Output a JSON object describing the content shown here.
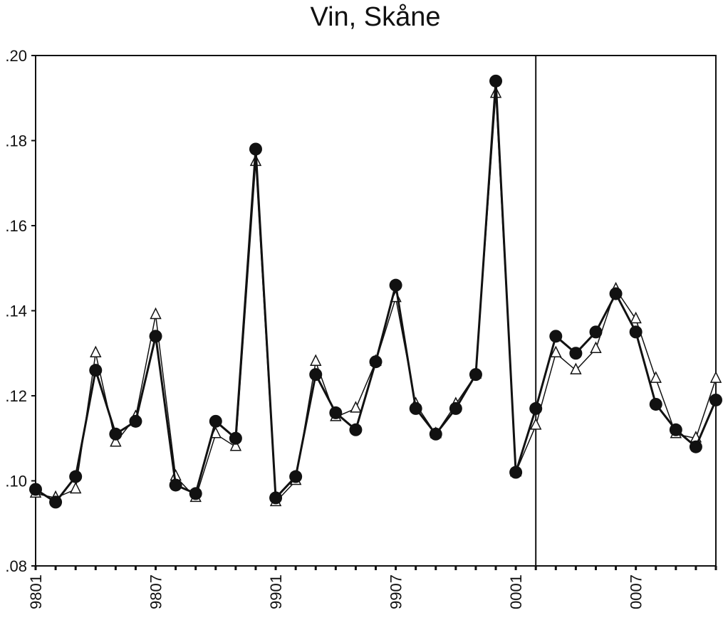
{
  "chart_data": {
    "type": "line",
    "title": "Vin, Skåne",
    "categories": [
      "9801",
      null,
      null,
      null,
      null,
      null,
      "9807",
      null,
      null,
      null,
      null,
      null,
      "9901",
      null,
      null,
      null,
      null,
      null,
      "9907",
      null,
      null,
      null,
      null,
      null,
      "0001",
      null,
      null,
      null,
      null,
      null,
      "0007",
      null,
      null,
      null,
      null
    ],
    "series": [
      {
        "color": "#111111",
        "marker": "circle",
        "values": [
          0.098,
          0.095,
          0.101,
          0.126,
          0.111,
          0.114,
          0.134,
          0.099,
          0.097,
          0.114,
          0.11,
          0.178,
          0.096,
          0.101,
          0.125,
          0.116,
          0.112,
          0.128,
          0.146,
          0.117,
          0.111,
          0.117,
          0.125,
          0.194,
          0.102,
          0.117,
          0.134,
          0.13,
          0.135,
          0.144,
          0.135,
          0.118,
          0.112,
          0.108,
          0.119
        ]
      },
      {
        "color": "#111111",
        "marker": "triangle-open",
        "values": [
          0.097,
          0.096,
          0.098,
          0.13,
          0.109,
          0.115,
          0.139,
          0.101,
          0.096,
          0.111,
          0.108,
          0.175,
          0.095,
          0.1,
          0.128,
          0.115,
          0.117,
          0.128,
          0.143,
          0.118,
          0.111,
          0.118,
          0.125,
          0.191,
          0.102,
          0.113,
          0.13,
          0.126,
          0.131,
          0.145,
          0.138,
          0.124,
          0.111,
          0.11,
          0.124
        ]
      }
    ],
    "ylim": [
      0.08,
      0.2
    ],
    "yticks": [
      {
        "value": 0.08,
        "label": ".08"
      },
      {
        "value": 0.1,
        "label": ".10"
      },
      {
        "value": 0.12,
        "label": ".12"
      },
      {
        "value": 0.14,
        "label": ".14"
      },
      {
        "value": 0.16,
        "label": ".16"
      },
      {
        "value": 0.18,
        "label": ".18"
      },
      {
        "value": 0.2,
        "label": ".20"
      }
    ],
    "vline_x": 25
  }
}
